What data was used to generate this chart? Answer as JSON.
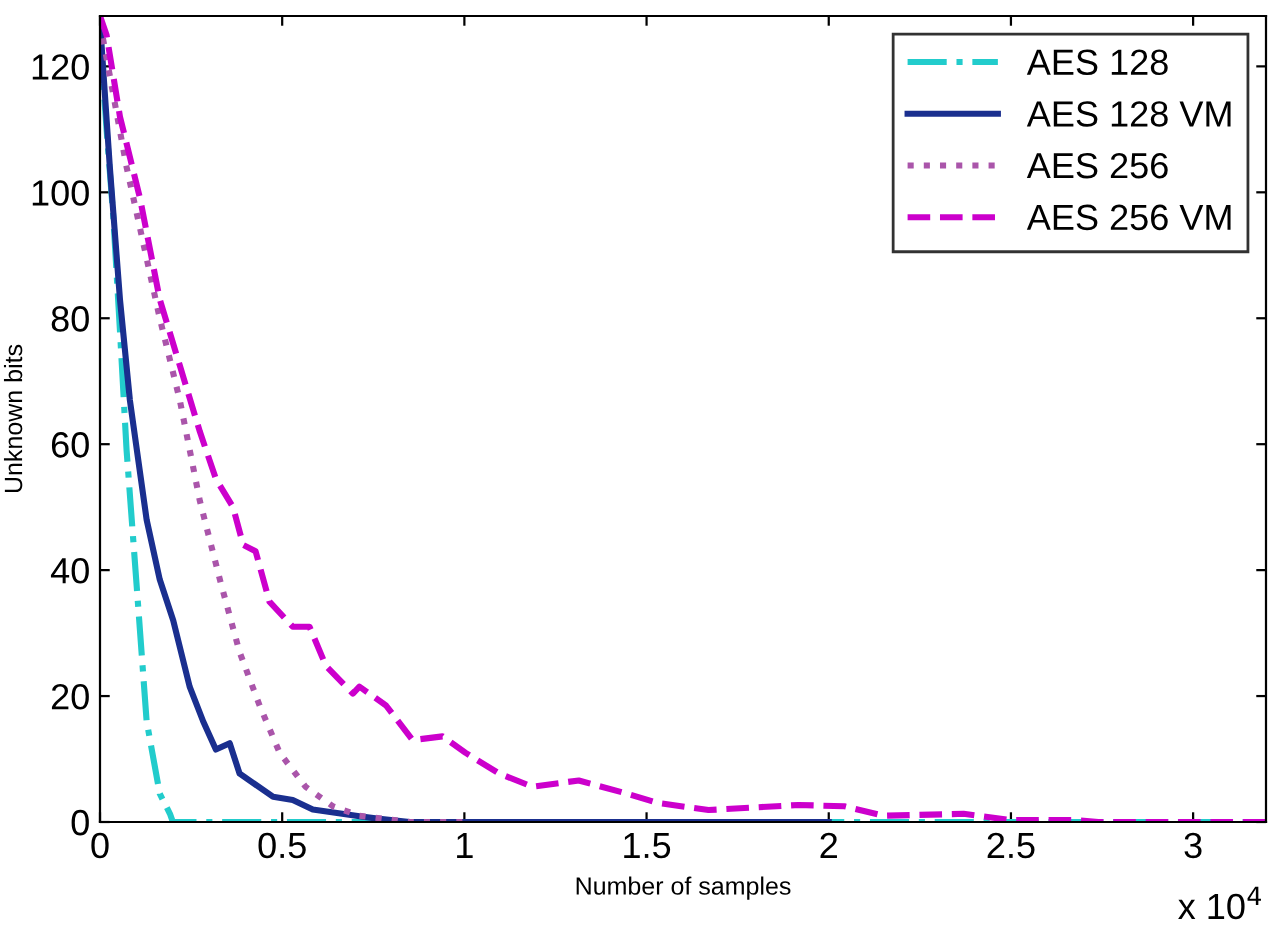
{
  "chart_data": {
    "type": "line",
    "xlabel": "Number of samples",
    "ylabel": "Unknown bits",
    "annotations": [
      "x 10$^{4}$"
    ],
    "xlim": [
      0,
      3.2
    ],
    "ylim": [
      0,
      128
    ],
    "xticks": [
      0,
      0.5,
      1,
      1.5,
      2,
      2.5,
      3
    ],
    "yticks": [
      0,
      20,
      40,
      60,
      80,
      100,
      120
    ],
    "legend": "top right",
    "grid": false,
    "series": [
      {
        "name": "AES 128",
        "color": "#22cccc",
        "line_style": "dashdot",
        "x": [
          0,
          0.018,
          0.0366,
          0.0548,
          0.073,
          0.1,
          0.128,
          0.164,
          0.192,
          0.2,
          3.2
        ],
        "values": [
          125,
          110,
          96,
          78,
          59,
          38,
          16,
          4.5,
          1.3,
          0,
          0
        ]
      },
      {
        "name": "AES 128 VM",
        "color": "#1a2f8f",
        "line_style": "solid",
        "x": [
          0,
          0.027,
          0.0548,
          0.082,
          0.128,
          0.164,
          0.201,
          0.246,
          0.283,
          0.318,
          0.356,
          0.383,
          0.475,
          0.529,
          0.584,
          0.712,
          0.767,
          0.85,
          2.0
        ],
        "values": [
          127,
          104,
          83,
          67,
          48,
          38.5,
          32,
          21.5,
          16,
          11.5,
          12.5,
          7.7,
          4,
          3.5,
          2,
          0.9,
          0.5,
          0,
          0
        ]
      },
      {
        "name": "AES 256",
        "color": "#aa55aa",
        "line_style": "dotted",
        "x": [
          0,
          0.073,
          0.164,
          0.219,
          0.274,
          0.329,
          0.383,
          0.438,
          0.493,
          0.564,
          0.639,
          0.712,
          0.85,
          1.0
        ],
        "values": [
          127,
          104,
          80,
          67,
          51,
          38.5,
          27,
          18.5,
          11,
          5.6,
          2.5,
          1,
          0,
          0
        ]
      },
      {
        "name": "AES 256 VM",
        "color": "#cc00cc",
        "line_style": "dashed",
        "x": [
          0,
          0.018,
          0.0548,
          0.11,
          0.164,
          0.219,
          0.274,
          0.318,
          0.365,
          0.393,
          0.427,
          0.465,
          0.529,
          0.575,
          0.62,
          0.694,
          0.712,
          0.785,
          0.858,
          0.94,
          1.003,
          1.095,
          1.187,
          1.314,
          1.44,
          1.533,
          1.67,
          1.917,
          2.043,
          2.15,
          2.37,
          2.5,
          2.68,
          2.74,
          3.2
        ],
        "values": [
          128,
          125,
          112,
          99,
          83,
          72.5,
          62,
          54.5,
          50,
          44,
          43,
          35,
          31,
          31,
          24.8,
          20.4,
          21.5,
          18.5,
          13,
          13.6,
          11,
          7.7,
          5.6,
          6.6,
          4.6,
          3,
          1.9,
          2.7,
          2.5,
          1,
          1.3,
          0.3,
          0.3,
          0,
          0
        ]
      }
    ]
  }
}
